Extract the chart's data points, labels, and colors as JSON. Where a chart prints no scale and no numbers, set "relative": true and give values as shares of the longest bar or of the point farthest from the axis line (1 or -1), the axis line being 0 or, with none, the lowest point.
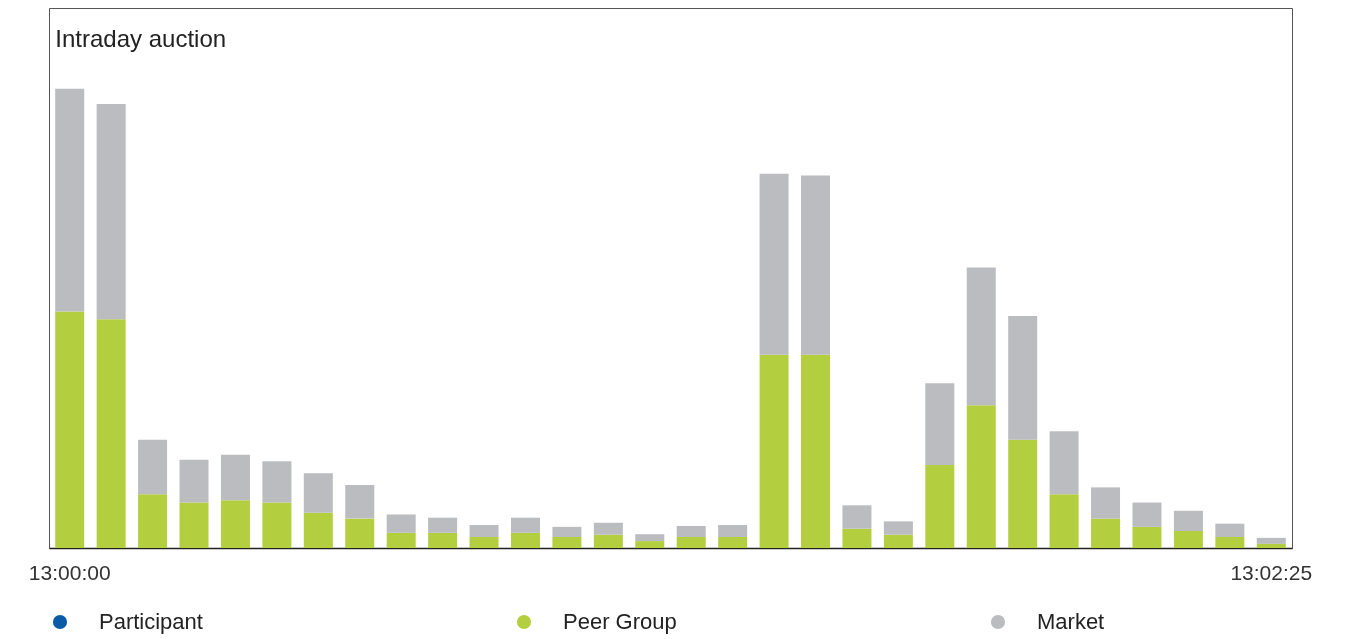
{
  "chart_data": {
    "type": "bar",
    "title": "Intraday auction",
    "relative": true,
    "stacked": true,
    "legend": "bottom",
    "grid": false,
    "tick_labels": "x",
    "categories": [
      "13:00:00",
      null,
      null,
      null,
      null,
      null,
      null,
      null,
      null,
      null,
      null,
      null,
      null,
      null,
      null,
      null,
      null,
      null,
      null,
      null,
      null,
      null,
      null,
      null,
      null,
      null,
      null,
      null,
      null,
      "13:02:25"
    ],
    "series": [
      {
        "name": "Participant",
        "color": "#0a5aa8",
        "values": [
          null,
          null,
          null,
          null,
          null,
          null,
          null,
          null,
          null,
          null,
          null,
          null,
          null,
          null,
          null,
          null,
          null,
          null,
          null,
          null,
          null,
          null,
          null,
          null,
          null,
          null,
          null,
          null,
          null,
          null
        ]
      },
      {
        "name": "Peer Group",
        "color": "#b3cf3f",
        "values": [
          0.515,
          0.498,
          0.117,
          0.099,
          0.104,
          0.099,
          0.077,
          0.064,
          0.033,
          0.033,
          0.024,
          0.033,
          0.024,
          0.029,
          0.015,
          0.024,
          0.024,
          0.421,
          0.421,
          0.042,
          0.029,
          0.181,
          0.311,
          0.236,
          0.117,
          0.064,
          0.046,
          0.037,
          0.024,
          0.009
        ]
      },
      {
        "name": "Market",
        "color": "#bbbcc0",
        "values": [
          0.485,
          0.469,
          0.119,
          0.093,
          0.099,
          0.09,
          0.086,
          0.073,
          0.04,
          0.033,
          0.026,
          0.033,
          0.022,
          0.026,
          0.015,
          0.024,
          0.026,
          0.394,
          0.39,
          0.051,
          0.029,
          0.178,
          0.3,
          0.269,
          0.137,
          0.068,
          0.053,
          0.044,
          0.029,
          0.013
        ]
      }
    ]
  }
}
